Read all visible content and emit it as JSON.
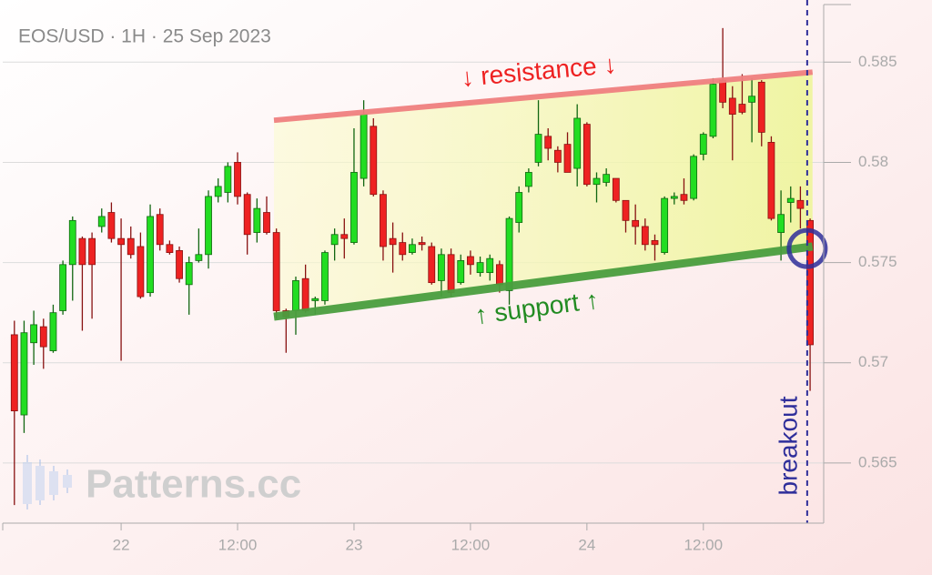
{
  "chart_data": {
    "type": "candlestick",
    "title": "EOS/USD · 1H · 25 Sep 2023",
    "watermark": "Patterns.cc",
    "x": [
      -11,
      -10,
      -9,
      -8,
      -7,
      -6,
      -5,
      -4,
      -3,
      -2,
      -1,
      0,
      1,
      2,
      3,
      4,
      5,
      6,
      7,
      8,
      9,
      10,
      11,
      12,
      13,
      14,
      15,
      16,
      17,
      18,
      19,
      20,
      21,
      22,
      23,
      24,
      25,
      26,
      27,
      28,
      29,
      30,
      31,
      32,
      33,
      34,
      35,
      36,
      37,
      38,
      39,
      40,
      41,
      42,
      43,
      44,
      45,
      46,
      47,
      48,
      49,
      50,
      51,
      52,
      53,
      54,
      55,
      56,
      57,
      58,
      59,
      60,
      61,
      62,
      63,
      64,
      65,
      66,
      67,
      68,
      69,
      70,
      71
    ],
    "open": [
      0.5714,
      0.5674,
      0.571,
      0.5718,
      0.5706,
      0.5726,
      0.5749,
      0.5762,
      0.5762,
      0.5768,
      0.5775,
      0.5762,
      0.5762,
      0.5758,
      0.5735,
      0.5774,
      0.5759,
      0.5756,
      0.5739,
      0.5751,
      0.5754,
      0.5783,
      0.5785,
      0.58,
      0.5784,
      0.5765,
      0.5775,
      0.5765,
      0.5726,
      0.5726,
      0.5742,
      0.5731,
      0.5731,
      0.5759,
      0.5764,
      0.576,
      0.5792,
      0.5818,
      0.5784,
      0.5762,
      0.576,
      0.5755,
      0.576,
      0.5758,
      0.5741,
      0.5754,
      0.574,
      0.5753,
      0.5745,
      0.5745,
      0.5749,
      0.5736,
      0.577,
      0.5788,
      0.58,
      0.5813,
      0.5806,
      0.5809,
      0.5797,
      0.5819,
      0.5789,
      0.579,
      0.5792,
      0.5781,
      0.5771,
      0.5768,
      0.5761,
      0.5755,
      0.5782,
      0.5784,
      0.5782,
      0.5804,
      0.5813,
      0.5841,
      0.5832,
      0.5829,
      0.583,
      0.584,
      0.581,
      0.5765,
      0.578,
      0.5781,
      0.5771
    ],
    "high": [
      0.5721,
      0.5721,
      0.5726,
      0.5722,
      0.5729,
      0.5751,
      0.5773,
      0.5763,
      0.5765,
      0.5777,
      0.578,
      0.5772,
      0.5768,
      0.5765,
      0.5779,
      0.5777,
      0.5761,
      0.5758,
      0.5753,
      0.5767,
      0.5786,
      0.5792,
      0.58,
      0.5805,
      0.5785,
      0.5782,
      0.5783,
      0.5767,
      0.5727,
      0.5743,
      0.5749,
      0.5733,
      0.5756,
      0.5767,
      0.5772,
      0.5817,
      0.5831,
      0.5822,
      0.5786,
      0.577,
      0.5765,
      0.5762,
      0.5763,
      0.576,
      0.5757,
      0.5757,
      0.5754,
      0.5756,
      0.5753,
      0.5754,
      0.5751,
      0.5773,
      0.5788,
      0.5797,
      0.5831,
      0.5817,
      0.5808,
      0.5815,
      0.5829,
      0.582,
      0.5795,
      0.5797,
      0.5792,
      0.5781,
      0.5779,
      0.5772,
      0.5764,
      0.5783,
      0.5785,
      0.5792,
      0.5804,
      0.5815,
      0.5842,
      0.5867,
      0.5838,
      0.5844,
      0.5842,
      0.5841,
      0.5813,
      0.5786,
      0.5788,
      0.5788,
      0.5772
    ],
    "low": [
      0.5629,
      0.5665,
      0.5699,
      0.5697,
      0.5705,
      0.5724,
      0.5731,
      0.5716,
      0.5722,
      0.5765,
      0.576,
      0.5701,
      0.5752,
      0.5732,
      0.5733,
      0.5756,
      0.5754,
      0.574,
      0.5724,
      0.575,
      0.5747,
      0.578,
      0.578,
      0.5779,
      0.5754,
      0.576,
      0.5764,
      0.5722,
      0.5705,
      0.5714,
      0.5725,
      0.5724,
      0.5729,
      0.5751,
      0.5752,
      0.5759,
      0.5788,
      0.5783,
      0.5751,
      0.5745,
      0.5751,
      0.5754,
      0.5756,
      0.5739,
      0.5733,
      0.5733,
      0.5739,
      0.5744,
      0.5743,
      0.5741,
      0.5735,
      0.5729,
      0.5765,
      0.5785,
      0.5798,
      0.5801,
      0.5795,
      0.5795,
      0.5788,
      0.5788,
      0.578,
      0.5788,
      0.578,
      0.5765,
      0.5759,
      0.5756,
      0.5751,
      0.5754,
      0.5779,
      0.5779,
      0.5781,
      0.5801,
      0.5812,
      0.5827,
      0.5801,
      0.5824,
      0.581,
      0.5808,
      0.5771,
      0.5751,
      0.577,
      0.5767,
      0.5686
    ],
    "close": [
      0.5676,
      0.5715,
      0.5719,
      0.5708,
      0.5725,
      0.5749,
      0.5771,
      0.5749,
      0.5749,
      0.5773,
      0.5762,
      0.5759,
      0.5754,
      0.5733,
      0.5773,
      0.5759,
      0.5755,
      0.5742,
      0.575,
      0.5754,
      0.5783,
      0.5788,
      0.5798,
      0.5783,
      0.5764,
      0.5777,
      0.5765,
      0.5726,
      0.5723,
      0.5741,
      0.5726,
      0.5732,
      0.5755,
      0.5764,
      0.5762,
      0.5795,
      0.5824,
      0.5784,
      0.5758,
      0.5759,
      0.5754,
      0.5759,
      0.5759,
      0.574,
      0.5754,
      0.5735,
      0.5751,
      0.5749,
      0.575,
      0.5752,
      0.5739,
      0.5772,
      0.5785,
      0.5795,
      0.5814,
      0.5807,
      0.58,
      0.5795,
      0.5822,
      0.5789,
      0.5792,
      0.5794,
      0.5781,
      0.5771,
      0.5768,
      0.5759,
      0.5759,
      0.5782,
      0.5783,
      0.5781,
      0.5803,
      0.5814,
      0.5839,
      0.583,
      0.5824,
      0.5825,
      0.5833,
      0.5815,
      0.5772,
      0.5774,
      0.5782,
      0.5777,
      0.5709
    ],
    "up_color": "#22dd22",
    "down_color": "#ee2222",
    "xlim": [
      -12.2,
      72.4
    ],
    "ylim": [
      0.562,
      0.5881
    ],
    "xticks": [
      {
        "value": 0,
        "label": "22"
      },
      {
        "value": 12,
        "label": "12:00"
      },
      {
        "value": 24,
        "label": "23"
      },
      {
        "value": 36,
        "label": "12:00"
      },
      {
        "value": 48,
        "label": "24"
      },
      {
        "value": 60,
        "label": "12:00"
      }
    ],
    "yticks": [
      0.565,
      0.57,
      0.575,
      0.58,
      0.585
    ],
    "grid": true,
    "resistance": {
      "label": "↓ resistance ↓",
      "x": [
        15.75,
        71.25
      ],
      "y": [
        0.5821,
        0.5845
      ],
      "color": "#f08080"
    },
    "support": {
      "label": "↑ support ↑",
      "x": [
        15.75,
        71.25
      ],
      "y": [
        0.5723,
        0.5758
      ],
      "color": "#4a9e3f"
    },
    "breakout": {
      "label": "breakout",
      "x": 70.7,
      "circle_y": 0.5757,
      "color": "#2e2e9a"
    }
  }
}
